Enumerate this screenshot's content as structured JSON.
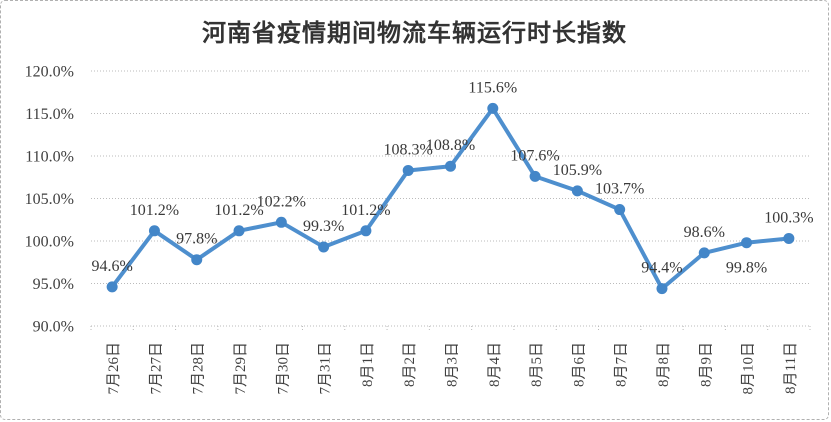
{
  "chart_data": {
    "type": "line",
    "title": "河南省疫情期间物流车辆运行时长指数",
    "categories": [
      "7月26日",
      "7月27日",
      "7月28日",
      "7月29日",
      "7月30日",
      "7月31日",
      "8月1日",
      "8月2日",
      "8月3日",
      "8月4日",
      "8月5日",
      "8月6日",
      "8月7日",
      "8月8日",
      "8月9日",
      "8月10日",
      "8月11日"
    ],
    "values": [
      94.6,
      101.2,
      97.8,
      101.2,
      102.2,
      99.3,
      101.2,
      108.3,
      108.8,
      115.6,
      107.6,
      105.9,
      103.7,
      94.4,
      98.6,
      99.8,
      100.3
    ],
    "point_labels": [
      "94.6%",
      "101.2%",
      "97.8%",
      "101.2%",
      "102.2%",
      "99.3%",
      "101.2%",
      "108.3%",
      "108.8%",
      "115.6%",
      "107.6%",
      "105.9%",
      "103.7%",
      "94.4%",
      "98.6%",
      "99.8%",
      "100.3%"
    ],
    "label_position": [
      "above",
      "above",
      "above",
      "above",
      "above",
      "above",
      "above",
      "above",
      "above",
      "above",
      "above",
      "above",
      "above",
      "above",
      "above",
      "below",
      "above"
    ],
    "xlabel": "",
    "ylabel": "",
    "ylim": [
      90,
      120
    ],
    "yticks": [
      90,
      95,
      100,
      105,
      110,
      115,
      120
    ],
    "ytick_labels": [
      "90.0%",
      "95.0%",
      "100.0%",
      "105.0%",
      "110.0%",
      "115.0%",
      "120.0%"
    ],
    "grid": "horizontal-dotted",
    "legend": "none",
    "colors": {
      "line": "#4E8FCE",
      "marker": "#4386C8",
      "grid": "#bbbbbb",
      "axis_text": "#404040",
      "data_label_text": "#3a3a3a",
      "title_text": "#333333",
      "frame_border": "#b0b0b0"
    }
  }
}
